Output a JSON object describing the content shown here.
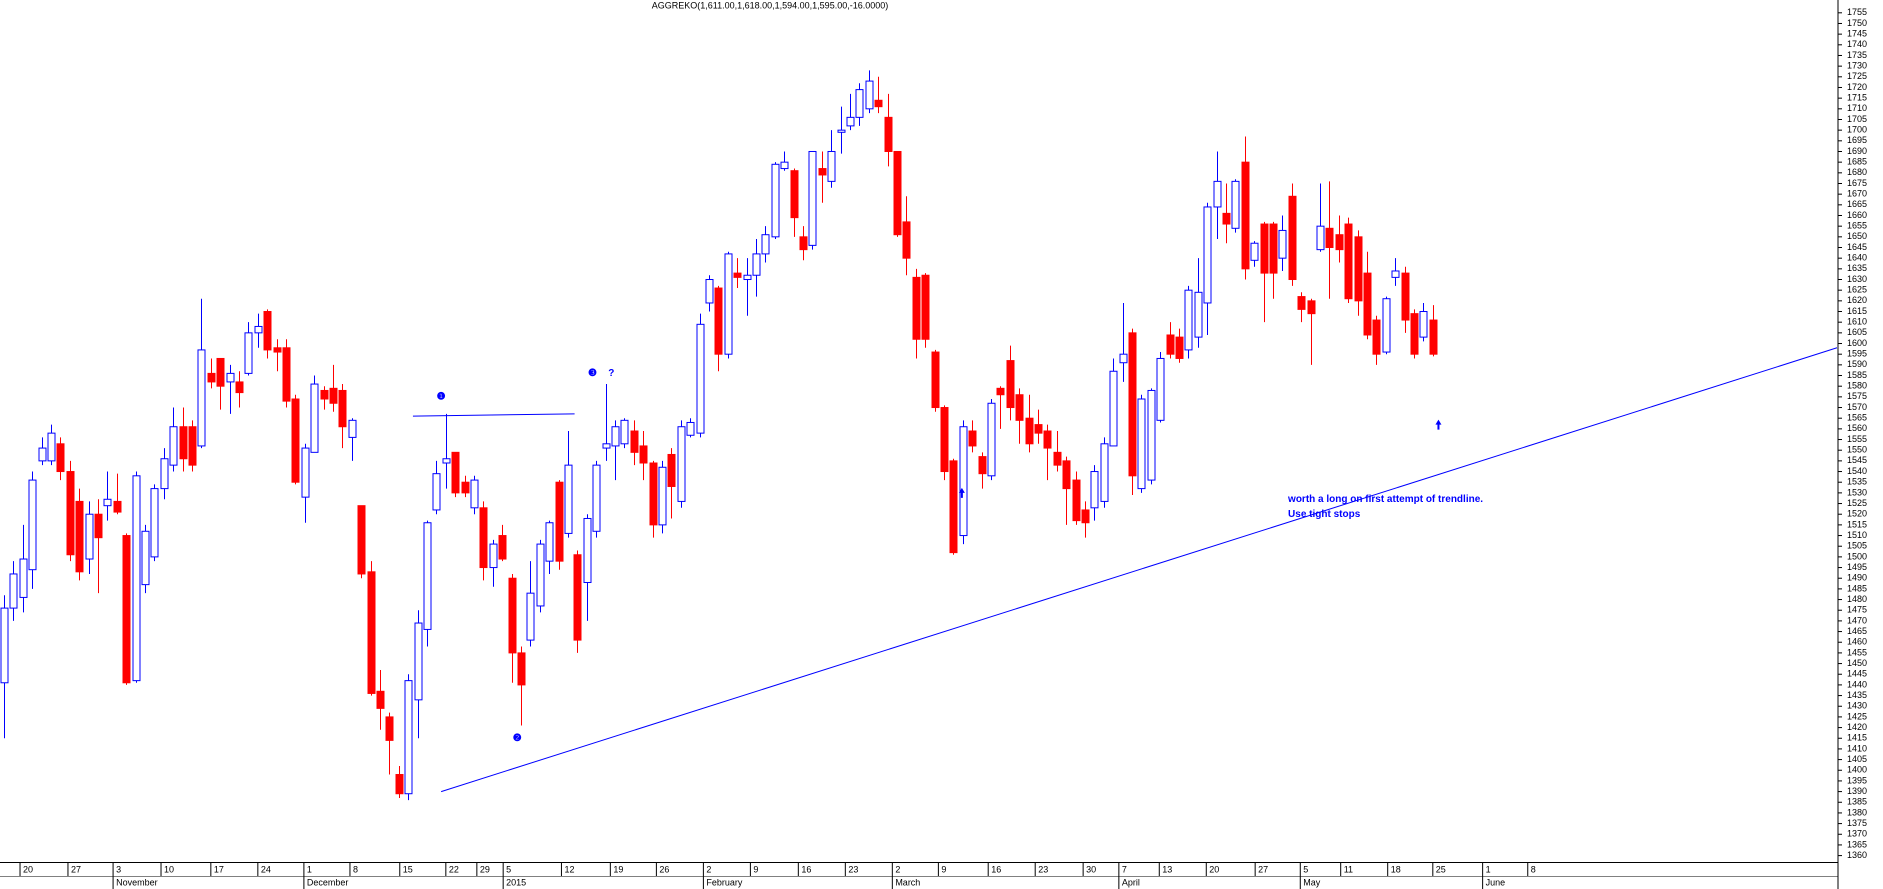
{
  "chart_data": {
    "type": "candlestick",
    "title": "AGGREKO(1,611.00,1,618.00,1,594.00,1,595.00,-16.0000)",
    "up_color": "#0000ff",
    "down_color": "#ff0000",
    "open": [
      1441,
      1476,
      1481,
      1494,
      1545,
      1545,
      1553,
      1540,
      1526,
      1499,
      1520,
      1524,
      1526,
      1510,
      1442,
      1487,
      1500,
      1532,
      1543,
      1561,
      1561,
      1552,
      1586,
      1593,
      1582,
      1582,
      1586,
      1605,
      1615,
      1598,
      1598,
      1574,
      1528,
      1549,
      1578,
      1579,
      1578,
      1556,
      1524,
      1493,
      1437,
      1425,
      1398,
      1389,
      1433,
      1466,
      1522,
      1544,
      1549,
      1535,
      1523,
      1523,
      1495,
      1510,
      1490,
      1455,
      1461,
      1477,
      1498,
      1535,
      1511,
      1501,
      1488,
      1512,
      1551,
      1552,
      1553,
      1559,
      1552,
      1544,
      1515,
      1548,
      1526,
      1557,
      1558,
      1619,
      1626,
      1595,
      1633,
      1630,
      1632,
      1642,
      1650,
      1682,
      1681,
      1650,
      1646,
      1682,
      1676,
      1699,
      1702,
      1706,
      1710,
      1714,
      1706,
      1690,
      1657,
      1631,
      1632,
      1596,
      1570,
      1545,
      1510,
      1559,
      1547,
      1538,
      1579,
      1592,
      1576,
      1565,
      1562,
      1559,
      1549,
      1545,
      1536,
      1522,
      1523,
      1526,
      1552,
      1591,
      1605,
      1532,
      1536,
      1564,
      1604,
      1603,
      1597,
      1603,
      1619,
      1664,
      1661,
      1654,
      1685,
      1639,
      1656,
      1656,
      1640,
      1669,
      1622,
      1620,
      1644,
      1654,
      1651,
      1656,
      1650,
      1633,
      1611,
      1596,
      1631,
      1633,
      1614,
      1603,
      1611
    ],
    "high": [
      1482,
      1498,
      1515,
      1540,
      1556,
      1562,
      1556,
      1545,
      1532,
      1526,
      1527,
      1540,
      1539,
      1511,
      1540,
      1515,
      1534,
      1551,
      1570,
      1570,
      1564,
      1621,
      1593,
      1593,
      1590,
      1587,
      1610,
      1614,
      1616,
      1602,
      1602,
      1576,
      1553,
      1585,
      1580,
      1590,
      1581,
      1565,
      1524,
      1498,
      1447,
      1427,
      1402,
      1445,
      1475,
      1517,
      1545,
      1567,
      1549,
      1538,
      1538,
      1526,
      1508,
      1515,
      1492,
      1458,
      1498,
      1508,
      1517,
      1536,
      1559,
      1503,
      1520,
      1545,
      1581,
      1564,
      1565,
      1564,
      1559,
      1545,
      1545,
      1551,
      1564,
      1565,
      1614,
      1632,
      1627,
      1643,
      1640,
      1640,
      1649,
      1655,
      1685,
      1690,
      1682,
      1655,
      1690,
      1690,
      1700,
      1711,
      1717,
      1722,
      1728,
      1725,
      1717,
      1690,
      1669,
      1635,
      1633,
      1597,
      1571,
      1546,
      1564,
      1564,
      1549,
      1574,
      1580,
      1599,
      1579,
      1576,
      1569,
      1562,
      1559,
      1547,
      1540,
      1526,
      1543,
      1556,
      1593,
      1619,
      1607,
      1576,
      1579,
      1596,
      1610,
      1607,
      1627,
      1640,
      1666,
      1690,
      1675,
      1677,
      1697,
      1648,
      1657,
      1657,
      1660,
      1675,
      1624,
      1621,
      1675,
      1676,
      1660,
      1659,
      1653,
      1643,
      1613,
      1622,
      1640,
      1636,
      1616,
      1619,
      1618
    ],
    "low": [
      1415,
      1470,
      1474,
      1485,
      1543,
      1543,
      1536,
      1498,
      1489,
      1492,
      1483,
      1517,
      1520,
      1440,
      1441,
      1483,
      1498,
      1527,
      1540,
      1540,
      1540,
      1551,
      1579,
      1569,
      1567,
      1570,
      1585,
      1598,
      1593,
      1587,
      1570,
      1534,
      1516,
      1549,
      1569,
      1568,
      1551,
      1545,
      1490,
      1435,
      1419,
      1398,
      1387,
      1386,
      1415,
      1458,
      1520,
      1532,
      1528,
      1528,
      1520,
      1489,
      1486,
      1498,
      1441,
      1421,
      1458,
      1474,
      1492,
      1494,
      1509,
      1455,
      1470,
      1509,
      1545,
      1536,
      1551,
      1543,
      1536,
      1509,
      1511,
      1518,
      1523,
      1556,
      1556,
      1615,
      1587,
      1593,
      1626,
      1613,
      1622,
      1638,
      1649,
      1681,
      1650,
      1639,
      1644,
      1666,
      1673,
      1689,
      1700,
      1702,
      1708,
      1708,
      1683,
      1650,
      1632,
      1593,
      1598,
      1568,
      1536,
      1501,
      1506,
      1549,
      1532,
      1536,
      1560,
      1564,
      1553,
      1549,
      1553,
      1536,
      1540,
      1515,
      1515,
      1509,
      1517,
      1523,
      1552,
      1582,
      1529,
      1530,
      1534,
      1563,
      1593,
      1591,
      1593,
      1598,
      1604,
      1649,
      1647,
      1652,
      1630,
      1636,
      1610,
      1621,
      1634,
      1627,
      1610,
      1590,
      1643,
      1621,
      1638,
      1619,
      1613,
      1602,
      1590,
      1595,
      1627,
      1605,
      1593,
      1601,
      1594
    ],
    "close": [
      1476,
      1492,
      1499,
      1536,
      1551,
      1558,
      1540,
      1501,
      1493,
      1520,
      1509,
      1527,
      1521,
      1441,
      1538,
      1512,
      1532,
      1546,
      1561,
      1546,
      1543,
      1597,
      1582,
      1580,
      1586,
      1577,
      1605,
      1608,
      1597,
      1596,
      1573,
      1535,
      1551,
      1581,
      1574,
      1572,
      1561,
      1564,
      1492,
      1436,
      1429,
      1414,
      1389,
      1442,
      1469,
      1516,
      1539,
      1546,
      1530,
      1530,
      1536,
      1495,
      1506,
      1499,
      1455,
      1440,
      1483,
      1506,
      1516,
      1498,
      1543,
      1461,
      1518,
      1543,
      1553,
      1561,
      1564,
      1549,
      1544,
      1515,
      1542,
      1533,
      1561,
      1563,
      1609,
      1630,
      1595,
      1642,
      1631,
      1632,
      1642,
      1651,
      1684,
      1685,
      1659,
      1644,
      1690,
      1679,
      1690,
      1700,
      1706,
      1719,
      1723,
      1711,
      1690,
      1651,
      1640,
      1602,
      1602,
      1570,
      1540,
      1502,
      1561,
      1552,
      1539,
      1572,
      1576,
      1570,
      1564,
      1553,
      1558,
      1551,
      1543,
      1532,
      1517,
      1516,
      1540,
      1553,
      1587,
      1595,
      1538,
      1574,
      1578,
      1593,
      1595,
      1593,
      1625,
      1624,
      1664,
      1676,
      1656,
      1676,
      1635,
      1647,
      1633,
      1633,
      1653,
      1630,
      1616,
      1614,
      1655,
      1645,
      1644,
      1621,
      1620,
      1604,
      1595,
      1621,
      1634,
      1611,
      1595,
      1615,
      1595
    ],
    "xlim": [
      -0.43,
      195
    ],
    "ylim": [
      1357,
      1761
    ],
    "yticks": [
      1360,
      1365,
      1370,
      1375,
      1380,
      1385,
      1390,
      1395,
      1400,
      1405,
      1410,
      1415,
      1420,
      1425,
      1430,
      1435,
      1440,
      1445,
      1450,
      1455,
      1460,
      1465,
      1470,
      1475,
      1480,
      1485,
      1490,
      1495,
      1500,
      1505,
      1510,
      1515,
      1520,
      1525,
      1530,
      1535,
      1540,
      1545,
      1550,
      1555,
      1560,
      1565,
      1570,
      1575,
      1580,
      1585,
      1590,
      1595,
      1600,
      1605,
      1610,
      1615,
      1620,
      1625,
      1630,
      1635,
      1640,
      1645,
      1650,
      1655,
      1660,
      1665,
      1670,
      1675,
      1680,
      1685,
      1690,
      1695,
      1700,
      1705,
      1710,
      1715,
      1720,
      1725,
      1730,
      1735,
      1740,
      1745,
      1750,
      1755
    ],
    "xticks": [
      {
        "value": 1.7,
        "label": "20"
      },
      {
        "value": 6.8,
        "label": "27"
      },
      {
        "value": 11.6,
        "label": "3"
      },
      {
        "value": 16.7,
        "label": "10"
      },
      {
        "value": 22.0,
        "label": "17"
      },
      {
        "value": 27.0,
        "label": "24"
      },
      {
        "value": 31.9,
        "label": "1"
      },
      {
        "value": 36.8,
        "label": "8"
      },
      {
        "value": 42.1,
        "label": "15"
      },
      {
        "value": 47.0,
        "label": "22"
      },
      {
        "value": 50.3,
        "label": "29"
      },
      {
        "value": 53.1,
        "label": "5"
      },
      {
        "value": 59.3,
        "label": "12"
      },
      {
        "value": 64.5,
        "label": "19"
      },
      {
        "value": 69.4,
        "label": "26"
      },
      {
        "value": 74.4,
        "label": "2"
      },
      {
        "value": 79.4,
        "label": "9"
      },
      {
        "value": 84.5,
        "label": "16"
      },
      {
        "value": 89.5,
        "label": "23"
      },
      {
        "value": 94.5,
        "label": "2"
      },
      {
        "value": 99.4,
        "label": "9"
      },
      {
        "value": 104.7,
        "label": "16"
      },
      {
        "value": 109.7,
        "label": "23"
      },
      {
        "value": 114.8,
        "label": "30"
      },
      {
        "value": 118.6,
        "label": "7"
      },
      {
        "value": 122.9,
        "label": "13"
      },
      {
        "value": 127.9,
        "label": "20"
      },
      {
        "value": 133.1,
        "label": "27"
      },
      {
        "value": 137.9,
        "label": "5"
      },
      {
        "value": 142.2,
        "label": "11"
      },
      {
        "value": 147.2,
        "label": "18"
      },
      {
        "value": 152.0,
        "label": "25"
      },
      {
        "value": 157.3,
        "label": "1"
      },
      {
        "value": 162.1,
        "label": "8"
      }
    ],
    "month_labels": [
      {
        "value": 11.6,
        "label": "November"
      },
      {
        "value": 31.9,
        "label": "December"
      },
      {
        "value": 53.1,
        "label": "2015"
      },
      {
        "value": 74.4,
        "label": "February"
      },
      {
        "value": 94.5,
        "label": "March"
      },
      {
        "value": 118.6,
        "label": "April"
      },
      {
        "value": 137.9,
        "label": "May"
      },
      {
        "value": 157.3,
        "label": "June"
      }
    ],
    "trendline": {
      "x": [
        46.5,
        195
      ],
      "y": [
        1390,
        1598
      ],
      "color": "#0000ff"
    },
    "level_line": {
      "x": [
        43.5,
        60.7
      ],
      "y": [
        1566,
        1567
      ],
      "color": "#0000ff"
    },
    "annotations": [
      {
        "text": "❶",
        "x": 46.5,
        "y": 1575
      },
      {
        "text": "❷",
        "x": 54.6,
        "y": 1415
      },
      {
        "text": "❸",
        "x": 62.6,
        "y": 1586
      },
      {
        "text": "?",
        "x": 64.6,
        "y": 1586
      },
      {
        "text": "worth a long on first attempt of trendline.",
        "x": 136.6,
        "y": 1527
      },
      {
        "text": "Use tight stops",
        "x": 136.6,
        "y": 1520
      }
    ],
    "arrows": [
      {
        "x": 101.9,
        "y": 1530
      },
      {
        "x": 152.6,
        "y": 1562
      }
    ]
  }
}
